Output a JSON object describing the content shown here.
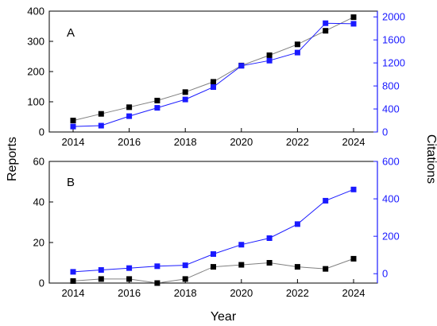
{
  "figure": {
    "xlabel": "Year",
    "ylabel_left": "Reports",
    "ylabel_right": "Citations"
  },
  "colors": {
    "reports": "#000000",
    "citations": "#1a1aff",
    "reports_line": "#808080"
  },
  "chart_data": [
    {
      "type": "line",
      "panel_label": "A",
      "x": [
        2014,
        2015,
        2016,
        2017,
        2018,
        2019,
        2020,
        2021,
        2022,
        2023,
        2024
      ],
      "series": [
        {
          "name": "Reports",
          "axis": "left",
          "marker": "square",
          "values": [
            38,
            60,
            82,
            104,
            132,
            166,
            220,
            254,
            290,
            335,
            380
          ]
        },
        {
          "name": "Citations",
          "axis": "right",
          "marker": "square",
          "values": [
            95,
            110,
            275,
            420,
            565,
            780,
            1150,
            1240,
            1380,
            1890,
            1880
          ]
        }
      ],
      "xlim": [
        2013.15,
        2024.85
      ],
      "x_ticks": [
        2014,
        2016,
        2018,
        2020,
        2022,
        2024
      ],
      "ylim_left": [
        0,
        400
      ],
      "y_ticks_left": [
        0,
        100,
        200,
        300,
        400
      ],
      "ylim_right": [
        0,
        2100
      ],
      "y_ticks_right": [
        0,
        400,
        800,
        1200,
        1600,
        2000
      ],
      "grid": false,
      "legend": "none"
    },
    {
      "type": "line",
      "panel_label": "B",
      "x": [
        2014,
        2015,
        2016,
        2017,
        2018,
        2019,
        2020,
        2021,
        2022,
        2023,
        2024
      ],
      "series": [
        {
          "name": "Reports",
          "axis": "left",
          "marker": "square",
          "values": [
            1,
            2,
            2,
            0,
            2,
            8,
            9,
            10,
            8,
            7,
            12
          ]
        },
        {
          "name": "Citations",
          "axis": "right",
          "marker": "square",
          "values": [
            10,
            20,
            30,
            40,
            45,
            105,
            155,
            190,
            265,
            390,
            450
          ]
        }
      ],
      "xlim": [
        2013.15,
        2024.85
      ],
      "x_ticks": [
        2014,
        2016,
        2018,
        2020,
        2022,
        2024
      ],
      "ylim_left": [
        0,
        60
      ],
      "y_ticks_left": [
        0,
        20,
        40,
        60
      ],
      "ylim_right": [
        -50,
        600
      ],
      "y_ticks_right": [
        0,
        200,
        400,
        600
      ],
      "grid": false,
      "legend": "none"
    }
  ]
}
